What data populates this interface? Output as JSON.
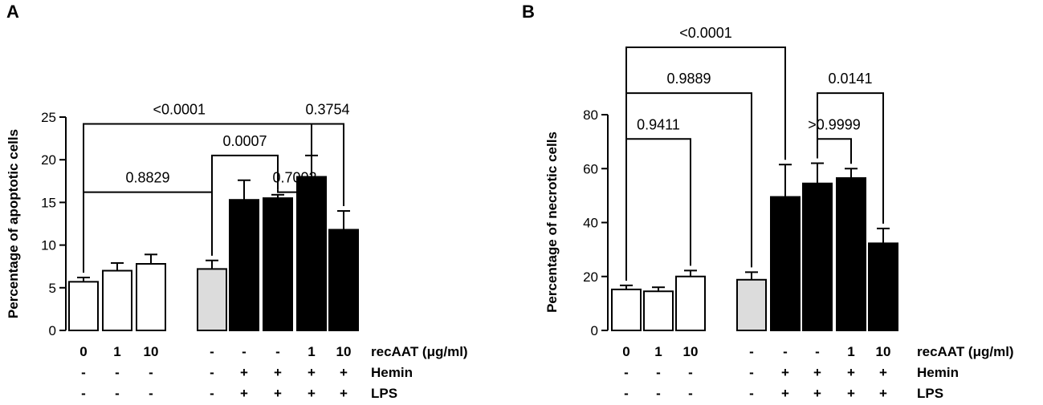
{
  "chart_data": [
    {
      "panel": "A",
      "type": "bar",
      "ylabel": "Percentage of apoptotic cells",
      "ylim": [
        0,
        25
      ],
      "yticks": [
        0,
        5,
        10,
        15,
        20,
        25
      ],
      "bars": [
        {
          "value": 5.7,
          "error": 0.5,
          "fill": "#ffffff",
          "recAAT": "0",
          "hemin": "-",
          "lps": "-"
        },
        {
          "value": 7.0,
          "error": 0.9,
          "fill": "#ffffff",
          "recAAT": "1",
          "hemin": "-",
          "lps": "-"
        },
        {
          "value": 7.8,
          "error": 1.1,
          "fill": "#ffffff",
          "recAAT": "10",
          "hemin": "-",
          "lps": "-"
        },
        {
          "value": 7.2,
          "error": 1.0,
          "fill": "#dcdcdc",
          "recAAT": "-",
          "hemin": "-",
          "lps": "-"
        },
        {
          "value": 15.3,
          "error": 2.3,
          "fill": "#000000",
          "recAAT": "-",
          "hemin": "+",
          "lps": "+"
        },
        {
          "value": 15.5,
          "error": 0.4,
          "fill": "#000000",
          "recAAT": "-",
          "hemin": "+",
          "lps": "+"
        },
        {
          "value": 18.0,
          "error": 2.5,
          "fill": "#000000",
          "recAAT": "1",
          "hemin": "+",
          "lps": "+"
        },
        {
          "value": 11.8,
          "error": 2.2,
          "fill": "#000000",
          "recAAT": "10",
          "hemin": "+",
          "lps": "+"
        }
      ],
      "comparisons": [
        {
          "from": 0,
          "to": 6,
          "level": 24.2,
          "p": "<0.0001",
          "label_pos": "left"
        },
        {
          "from": 6,
          "to": 7,
          "level": 24.2,
          "p": "0.3754",
          "label_pos": "center"
        },
        {
          "from": 3,
          "to": 5,
          "level": 20.5,
          "p": "0.0007",
          "label_pos": "center"
        },
        {
          "from": 0,
          "to": 3,
          "level": 16.2,
          "p": "0.8829",
          "label_pos": "center"
        },
        {
          "from": 5,
          "to": 6,
          "level": 16.2,
          "p": "0.7002",
          "label_pos": "center"
        }
      ],
      "row_labels": [
        "recAAT (μg/ml)",
        "Hemin",
        "LPS"
      ]
    },
    {
      "panel": "B",
      "type": "bar",
      "ylabel": "Percentage of necrotic cells",
      "ylim": [
        0,
        80
      ],
      "yticks": [
        0,
        20,
        40,
        60,
        80
      ],
      "bars": [
        {
          "value": 15.2,
          "error": 1.5,
          "fill": "#ffffff",
          "recAAT": "0",
          "hemin": "-",
          "lps": "-"
        },
        {
          "value": 14.5,
          "error": 1.5,
          "fill": "#ffffff",
          "recAAT": "1",
          "hemin": "-",
          "lps": "-"
        },
        {
          "value": 20.0,
          "error": 2.2,
          "fill": "#ffffff",
          "recAAT": "10",
          "hemin": "-",
          "lps": "-"
        },
        {
          "value": 18.8,
          "error": 2.8,
          "fill": "#dcdcdc",
          "recAAT": "-",
          "hemin": "-",
          "lps": "-"
        },
        {
          "value": 49.5,
          "error": 12.0,
          "fill": "#000000",
          "recAAT": "-",
          "hemin": "+",
          "lps": "+"
        },
        {
          "value": 54.5,
          "error": 7.5,
          "fill": "#000000",
          "recAAT": "-",
          "hemin": "+",
          "lps": "+"
        },
        {
          "value": 56.5,
          "error": 3.5,
          "fill": "#000000",
          "recAAT": "1",
          "hemin": "+",
          "lps": "+"
        },
        {
          "value": 32.3,
          "error": 5.5,
          "fill": "#000000",
          "recAAT": "10",
          "hemin": "+",
          "lps": "+"
        }
      ],
      "comparisons": [
        {
          "from": 0,
          "to": 4,
          "level": 105,
          "p": "<0.0001",
          "label_pos": "center"
        },
        {
          "from": 0,
          "to": 3,
          "level": 88,
          "p": "0.9889",
          "label_pos": "center"
        },
        {
          "from": 5,
          "to": 7,
          "level": 88,
          "p": "0.0141",
          "label_pos": "center"
        },
        {
          "from": 0,
          "to": 2,
          "level": 71,
          "p": "0.9411",
          "label_pos": "center"
        },
        {
          "from": 5,
          "to": 6,
          "level": 71,
          "p": ">0.9999",
          "label_pos": "center"
        }
      ],
      "row_labels": [
        "recAAT (μg/ml)",
        "Hemin",
        "LPS"
      ]
    }
  ]
}
